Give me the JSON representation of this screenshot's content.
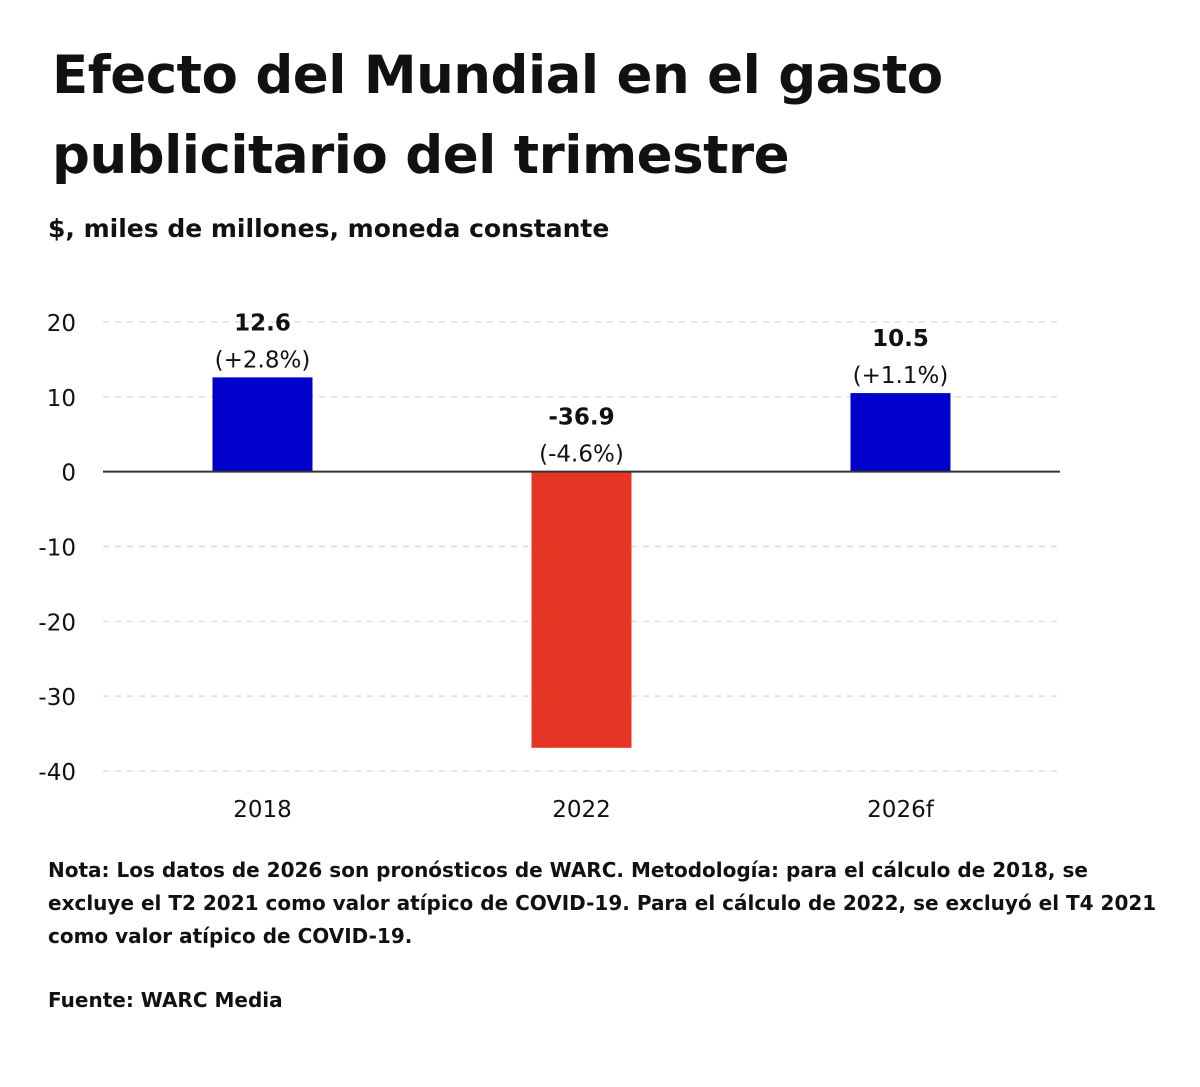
{
  "title": "Efecto del Mundial en el gasto publicitario del trimestre",
  "subtitle": "$, miles de millones, moneda constante",
  "note": "Nota: Los datos de 2026 son pronósticos de WARC. Metodología: para el cálculo de 2018, se excluye el T2 2021 como valor atípico de COVID-19. Para el cálculo de 2022, se excluyó el T4 2021 como valor atípico de COVID-19.",
  "source": "Fuente: WARC Media",
  "chart_data": {
    "type": "bar",
    "title": "Efecto del Mundial en el gasto publicitario del trimestre",
    "ylabel": "$, miles de millones, moneda constante",
    "categories": [
      "2018",
      "2022",
      "2026f"
    ],
    "values": [
      12.6,
      -36.9,
      10.5
    ],
    "value_labels": [
      "12.6",
      "-36.9",
      "10.5"
    ],
    "pct_labels": [
      "(+2.8%)",
      "(-4.6%)",
      "(+1.1%)"
    ],
    "colors": [
      "#0000cc",
      "#e63524",
      "#0000cc"
    ],
    "ylim": [
      -40,
      20
    ],
    "yticks": [
      20,
      10,
      0,
      -10,
      -20,
      -30,
      -40
    ],
    "grid": true
  }
}
